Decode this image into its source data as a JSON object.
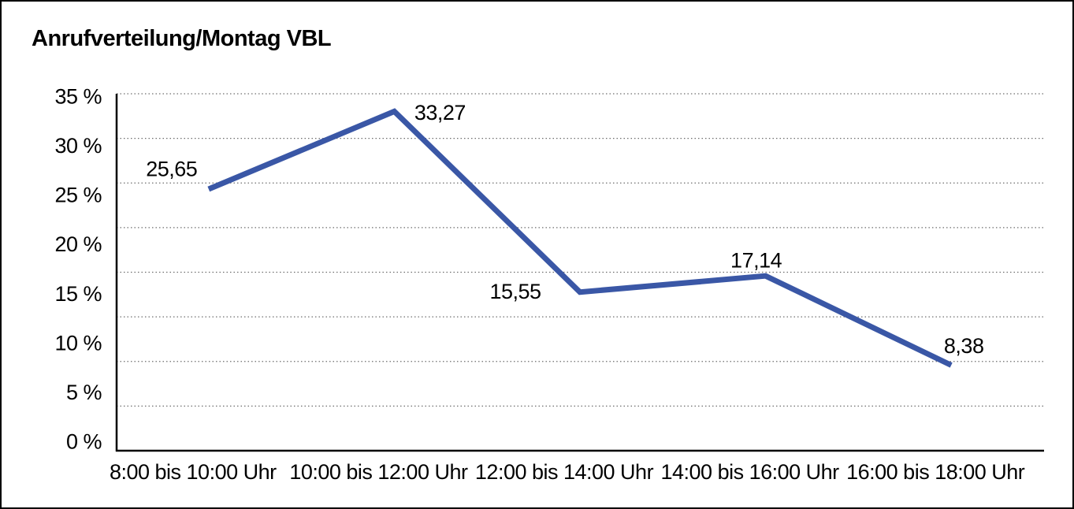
{
  "title": "Anrufverteilung/Montag VBL",
  "chart_data": {
    "type": "line",
    "title": "Anrufverteilung/Montag VBL",
    "categories": [
      "8:00 bis 10:00 Uhr",
      "10:00 bis 12:00 Uhr",
      "12:00 bis 14:00 Uhr",
      "14:00 bis 16:00 Uhr",
      "16:00 bis 18:00 Uhr"
    ],
    "values": [
      25.65,
      33.27,
      15.55,
      17.14,
      8.38
    ],
    "point_labels": [
      "25,65",
      "33,27",
      "15,55",
      "17,14",
      "8,38"
    ],
    "series_name": "Anrufverteilung Montag VBL",
    "xlabel": "",
    "ylabel": "",
    "ylim": [
      0,
      35
    ],
    "y_ticks": [
      35,
      30,
      25,
      20,
      15,
      10,
      5,
      0
    ],
    "y_tick_labels": [
      "35 %",
      "30 %",
      "25 %",
      "20 %",
      "15 %",
      "10 %",
      "5 %",
      "0 %"
    ],
    "grid": "horizontal-dotted",
    "grid_divisions": 8,
    "legend": "none",
    "markers": "none",
    "line_color": "#3A57A6",
    "grid_color": "#6E6E6E",
    "axis_color": "#000000",
    "text_color": "#000000",
    "background_color": "#FFFFFF",
    "border_color": "#000000"
  }
}
